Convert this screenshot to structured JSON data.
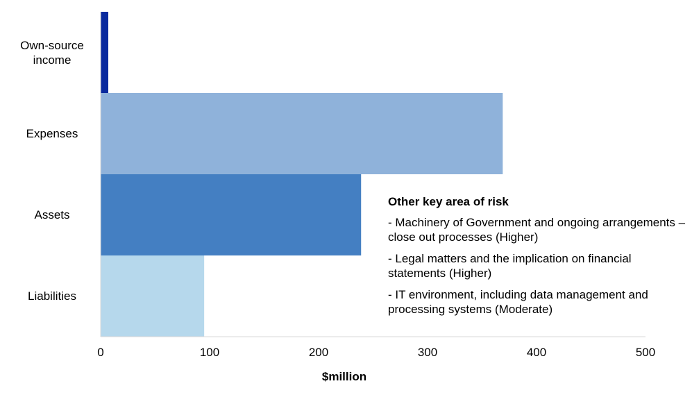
{
  "chart_data": {
    "type": "bar",
    "orientation": "horizontal",
    "categories": [
      "Own-source income",
      "Expenses",
      "Assets",
      "Liabilities"
    ],
    "category_lines": [
      [
        "Own-source",
        "income"
      ],
      [
        "Expenses"
      ],
      [
        "Assets"
      ],
      [
        "Liabilities"
      ]
    ],
    "values": [
      7,
      369,
      239,
      95
    ],
    "colors": [
      "#0a2a9e",
      "#8fb2da",
      "#447fc2",
      "#b6d8ec"
    ],
    "xlabel": "$million",
    "xlim": [
      0,
      500
    ],
    "xticks": [
      0,
      100,
      200,
      300,
      400,
      500
    ],
    "grid": false
  },
  "annotation": {
    "title": "Other key area of risk",
    "items": [
      "- Machinery of Government and ongoing arrangements – close out processes (Higher)",
      "- Legal matters and the implication on financial statements (Higher)",
      "- IT environment, including data management and processing systems (Moderate)"
    ]
  }
}
